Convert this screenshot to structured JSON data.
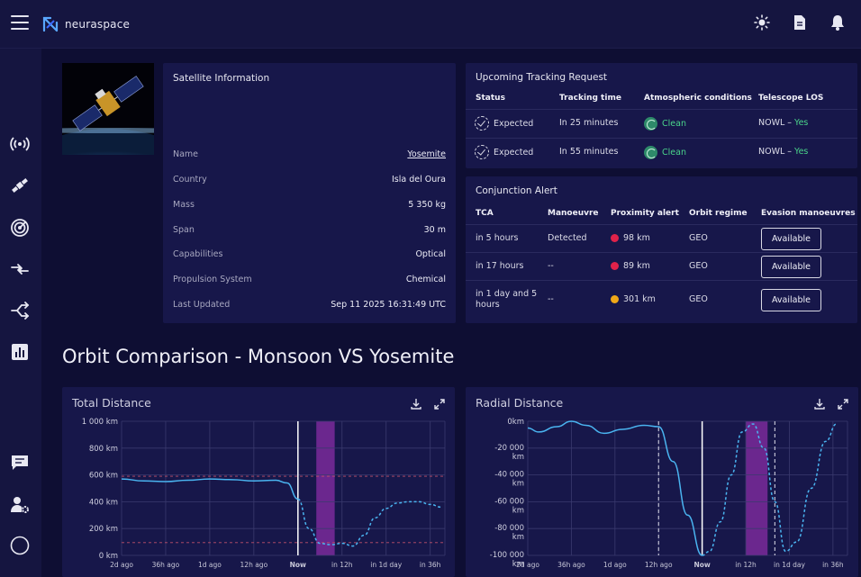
{
  "app": {
    "name": "neuraspace"
  },
  "topbar": {
    "icons": [
      "theme-icon",
      "document-icon",
      "bell-icon"
    ]
  },
  "sidebar": {
    "icons": [
      "broadcast-icon",
      "satellite-icon",
      "radar-icon",
      "compare-icon",
      "share-icon",
      "analytics-icon",
      "chat-icon",
      "user-settings-icon",
      "circle-icon"
    ]
  },
  "satellite_info": {
    "title": "Satellite Information",
    "rows": [
      {
        "label": "Name",
        "value": "Yosemite"
      },
      {
        "label": "Country",
        "value": "Isla del Oura"
      },
      {
        "label": "Mass",
        "value": "5 350 kg"
      },
      {
        "label": "Span",
        "value": "30 m"
      },
      {
        "label": "Capabilities",
        "value": "Optical"
      },
      {
        "label": "Propulsion System",
        "value": "Chemical"
      },
      {
        "label": "Last Updated",
        "value": "Sep 11 2025 16:31:49 UTC"
      }
    ]
  },
  "tracking": {
    "title": "Upcoming Tracking Request",
    "headers": [
      "Status",
      "Tracking time",
      "Atmospheric conditions",
      "Telescope LOS"
    ],
    "rows": [
      {
        "status": "Expected",
        "time": "In 25 minutes",
        "conditions": "Clean",
        "los_name": "NOWL –",
        "los_value": "Yes"
      },
      {
        "status": "Expected",
        "time": "In 55 minutes",
        "conditions": "Clean",
        "los_name": "NOWL –",
        "los_value": "Yes"
      }
    ]
  },
  "conjunction": {
    "title": "Conjunction Alert",
    "headers": [
      "TCA",
      "Manoeuvre",
      "Proximity alert",
      "Orbit regime",
      "Evasion manoeuvres"
    ],
    "rows": [
      {
        "tca": "in 5 hours",
        "manoeuvre": "Detected",
        "proximity": "98 km",
        "alert_color": "#e0224a",
        "regime": "GEO",
        "action": "Available"
      },
      {
        "tca": "in 17 hours",
        "manoeuvre": "--",
        "proximity": "89 km",
        "alert_color": "#e0224a",
        "regime": "GEO",
        "action": "Available"
      },
      {
        "tca": "in 1 day and 5 hours",
        "manoeuvre": "--",
        "proximity": "301 km",
        "alert_color": "#f0a818",
        "regime": "GEO",
        "action": "Available"
      }
    ]
  },
  "section_title": "Orbit Comparison - Monsoon VS Yosemite",
  "chart_data": [
    {
      "type": "line",
      "title": "Total Distance",
      "xlabel": "",
      "ylabel": "",
      "x_ticks": [
        "2d ago",
        "36h ago",
        "1d ago",
        "12h ago",
        "Now",
        "in 12h",
        "in 1d day",
        "in 36h"
      ],
      "x_range_hours": [
        -48,
        40
      ],
      "y_ticks": [
        "1 000 km",
        "800 km",
        "600 km",
        "400 km",
        "200 km",
        "0 km"
      ],
      "ylim": [
        0,
        1000
      ],
      "now_hour": 0,
      "highlight_hours": [
        5,
        10
      ],
      "threshold_lines": [
        {
          "value": 590,
          "color": "#c0506a"
        },
        {
          "value": 95,
          "color": "#c0506a"
        }
      ],
      "series": [
        {
          "style": "solid",
          "points": [
            [
              -48,
              570
            ],
            [
              -42,
              555
            ],
            [
              -36,
              550
            ],
            [
              -30,
              560
            ],
            [
              -24,
              570
            ],
            [
              -18,
              565
            ],
            [
              -12,
              555
            ],
            [
              -6,
              560
            ],
            [
              -3,
              540
            ],
            [
              0,
              420
            ]
          ]
        },
        {
          "style": "dashed",
          "points": [
            [
              0,
              420
            ],
            [
              3,
              200
            ],
            [
              6,
              90
            ],
            [
              9,
              80
            ],
            [
              12,
              90
            ],
            [
              15,
              70
            ],
            [
              18,
              150
            ],
            [
              21,
              280
            ],
            [
              24,
              350
            ],
            [
              27,
              390
            ],
            [
              30,
              400
            ],
            [
              33,
              400
            ],
            [
              36,
              380
            ],
            [
              39,
              360
            ]
          ]
        }
      ],
      "grid": true
    },
    {
      "type": "line",
      "title": "Radial Distance",
      "xlabel": "",
      "ylabel": "",
      "x_ticks": [
        "2d ago",
        "36h ago",
        "1d ago",
        "12h ago",
        "Now",
        "in 12h",
        "in 1d day",
        "in 36h"
      ],
      "x_range_hours": [
        -48,
        40
      ],
      "y_ticks": [
        "0km",
        "-20 000 km",
        "-40 000 km",
        "-60 000 km",
        "-80 000 km",
        "-100 000 km"
      ],
      "ylim": [
        -100000,
        0
      ],
      "now_hour": 0,
      "highlight_hours": [
        12,
        18
      ],
      "vertical_dashed_hours": [
        -12,
        20
      ],
      "series": [
        {
          "style": "solid",
          "points": [
            [
              -48,
              -5000
            ],
            [
              -45,
              -8000
            ],
            [
              -40,
              -4000
            ],
            [
              -36,
              0
            ],
            [
              -32,
              -3000
            ],
            [
              -27,
              -9000
            ],
            [
              -22,
              -6000
            ],
            [
              -16,
              -3000
            ],
            [
              -12,
              -4000
            ],
            [
              -8,
              -30000
            ],
            [
              -4,
              -70000
            ],
            [
              0,
              -100000
            ]
          ]
        },
        {
          "style": "dashed",
          "points": [
            [
              0,
              -100000
            ],
            [
              2,
              -97000
            ],
            [
              5,
              -75000
            ],
            [
              8,
              -40000
            ],
            [
              11,
              -8000
            ],
            [
              14,
              -2000
            ],
            [
              17,
              -20000
            ],
            [
              20,
              -60000
            ],
            [
              23,
              -97000
            ],
            [
              26,
              -90000
            ],
            [
              30,
              -50000
            ],
            [
              34,
              -15000
            ],
            [
              37,
              -2000
            ]
          ]
        }
      ],
      "grid": true
    }
  ]
}
